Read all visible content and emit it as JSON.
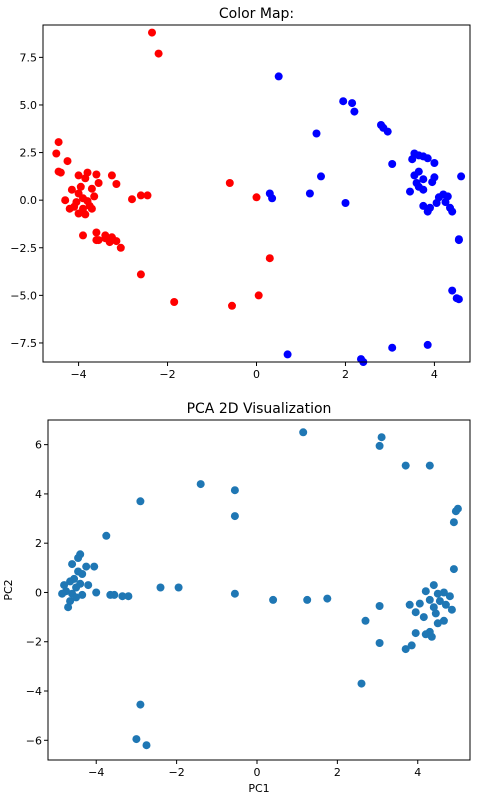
{
  "chart_data": [
    {
      "type": "scatter",
      "title": "Color Map:",
      "xlabel": "",
      "ylabel": "",
      "xlim": [
        -4.8,
        4.8
      ],
      "ylim": [
        -8.5,
        9.2
      ],
      "xticks": [
        -4,
        -2,
        0,
        2,
        4
      ],
      "yticks": [
        -7.5,
        -5.0,
        -2.5,
        0.0,
        2.5,
        5.0,
        7.5
      ],
      "grid": false,
      "series": [
        {
          "color": "#ff0000",
          "points": [
            [
              -2.35,
              8.8
            ],
            [
              -2.2,
              7.7
            ],
            [
              -4.45,
              3.05
            ],
            [
              -4.5,
              2.45
            ],
            [
              -4.25,
              2.05
            ],
            [
              -4.45,
              1.5
            ],
            [
              -4.4,
              1.45
            ],
            [
              -4.0,
              1.3
            ],
            [
              -3.85,
              1.15
            ],
            [
              -3.6,
              1.35
            ],
            [
              -3.8,
              1.45
            ],
            [
              -3.55,
              0.9
            ],
            [
              -3.95,
              0.7
            ],
            [
              -4.15,
              0.55
            ],
            [
              -3.7,
              0.6
            ],
            [
              -4.0,
              0.35
            ],
            [
              -3.9,
              0.1
            ],
            [
              -3.65,
              0.2
            ],
            [
              -4.3,
              0.0
            ],
            [
              -4.05,
              -0.1
            ],
            [
              -3.8,
              -0.05
            ],
            [
              -4.1,
              -0.35
            ],
            [
              -3.9,
              -0.45
            ],
            [
              -3.75,
              -0.3
            ],
            [
              -4.0,
              -0.7
            ],
            [
              -3.85,
              -0.75
            ],
            [
              -4.2,
              -0.45
            ],
            [
              -3.7,
              -0.45
            ],
            [
              -3.25,
              1.3
            ],
            [
              -3.15,
              0.85
            ],
            [
              -2.8,
              0.05
            ],
            [
              -2.6,
              0.25
            ],
            [
              -2.45,
              0.25
            ],
            [
              -3.9,
              -1.85
            ],
            [
              -3.6,
              -1.7
            ],
            [
              -3.55,
              -2.1
            ],
            [
              -3.4,
              -1.85
            ],
            [
              -3.4,
              -2.0
            ],
            [
              -3.6,
              -2.1
            ],
            [
              -3.3,
              -2.2
            ],
            [
              -3.25,
              -1.95
            ],
            [
              -3.15,
              -2.15
            ],
            [
              -3.05,
              -2.5
            ],
            [
              -2.6,
              -3.9
            ],
            [
              -1.85,
              -5.35
            ],
            [
              -0.6,
              0.9
            ],
            [
              -0.55,
              -5.55
            ],
            [
              0.0,
              0.15
            ],
            [
              0.05,
              -5.0
            ],
            [
              0.3,
              -3.05
            ]
          ]
        },
        {
          "color": "#0000ff",
          "points": [
            [
              0.5,
              6.5
            ],
            [
              1.95,
              5.2
            ],
            [
              2.15,
              5.1
            ],
            [
              2.2,
              4.65
            ],
            [
              2.8,
              3.95
            ],
            [
              2.85,
              3.8
            ],
            [
              2.95,
              3.6
            ],
            [
              1.35,
              3.5
            ],
            [
              3.55,
              2.45
            ],
            [
              3.65,
              2.35
            ],
            [
              3.5,
              2.15
            ],
            [
              3.75,
              2.3
            ],
            [
              3.85,
              2.2
            ],
            [
              3.05,
              1.9
            ],
            [
              4.0,
              1.95
            ],
            [
              3.65,
              1.5
            ],
            [
              3.55,
              1.3
            ],
            [
              3.75,
              1.1
            ],
            [
              3.6,
              0.9
            ],
            [
              3.95,
              0.95
            ],
            [
              4.0,
              1.2
            ],
            [
              3.65,
              0.7
            ],
            [
              3.75,
              0.55
            ],
            [
              4.6,
              1.25
            ],
            [
              1.45,
              1.25
            ],
            [
              3.45,
              0.45
            ],
            [
              0.3,
              0.35
            ],
            [
              0.35,
              0.1
            ],
            [
              1.2,
              0.35
            ],
            [
              4.1,
              0.15
            ],
            [
              4.2,
              0.3
            ],
            [
              4.3,
              0.2
            ],
            [
              4.25,
              -0.1
            ],
            [
              4.35,
              -0.4
            ],
            [
              4.4,
              -0.6
            ],
            [
              3.75,
              -0.3
            ],
            [
              3.9,
              -0.4
            ],
            [
              4.05,
              -0.15
            ],
            [
              3.85,
              -0.6
            ],
            [
              2.0,
              -0.15
            ],
            [
              4.55,
              -2.05
            ],
            [
              4.55,
              -2.1
            ],
            [
              4.4,
              -4.75
            ],
            [
              4.5,
              -5.15
            ],
            [
              4.55,
              -5.2
            ],
            [
              0.7,
              -8.1
            ],
            [
              2.35,
              -8.35
            ],
            [
              2.4,
              -8.5
            ],
            [
              3.05,
              -7.75
            ],
            [
              3.85,
              -7.6
            ]
          ]
        }
      ]
    },
    {
      "type": "scatter",
      "title": "PCA 2D Visualization",
      "xlabel": "PC1",
      "ylabel": "PC2",
      "xlim": [
        -5.2,
        5.3
      ],
      "ylim": [
        -6.8,
        7.0
      ],
      "xticks": [
        -4,
        -2,
        0,
        2,
        4
      ],
      "yticks": [
        -6,
        -4,
        -2,
        0,
        2,
        4,
        6
      ],
      "grid": false,
      "series": [
        {
          "color": "#1f77b4",
          "points": [
            [
              1.15,
              6.5
            ],
            [
              3.1,
              6.3
            ],
            [
              3.05,
              5.95
            ],
            [
              3.7,
              5.15
            ],
            [
              4.3,
              5.15
            ],
            [
              -1.4,
              4.4
            ],
            [
              -0.55,
              4.15
            ],
            [
              -2.9,
              3.7
            ],
            [
              -0.55,
              3.1
            ],
            [
              5.0,
              3.4
            ],
            [
              4.95,
              3.3
            ],
            [
              4.9,
              2.85
            ],
            [
              -3.75,
              2.3
            ],
            [
              4.9,
              0.95
            ],
            [
              -4.4,
              1.55
            ],
            [
              -4.45,
              1.4
            ],
            [
              -4.6,
              1.15
            ],
            [
              -4.25,
              1.05
            ],
            [
              -4.05,
              1.05
            ],
            [
              -4.45,
              0.85
            ],
            [
              -4.35,
              0.75
            ],
            [
              -4.55,
              0.55
            ],
            [
              -4.65,
              0.45
            ],
            [
              -4.8,
              0.3
            ],
            [
              -4.4,
              0.35
            ],
            [
              -4.2,
              0.3
            ],
            [
              -4.5,
              0.2
            ],
            [
              -4.75,
              0.05
            ],
            [
              -4.6,
              -0.05
            ],
            [
              -4.85,
              -0.05
            ],
            [
              -4.5,
              -0.2
            ],
            [
              -4.65,
              -0.35
            ],
            [
              -4.35,
              -0.1
            ],
            [
              -4.7,
              -0.6
            ],
            [
              -4.0,
              0.0
            ],
            [
              -3.65,
              -0.1
            ],
            [
              -3.55,
              -0.1
            ],
            [
              -3.35,
              -0.15
            ],
            [
              -3.2,
              -0.15
            ],
            [
              -2.4,
              0.2
            ],
            [
              -1.95,
              0.2
            ],
            [
              -0.55,
              -0.05
            ],
            [
              0.4,
              -0.3
            ],
            [
              1.25,
              -0.3
            ],
            [
              1.75,
              -0.25
            ],
            [
              4.4,
              0.3
            ],
            [
              4.2,
              0.05
            ],
            [
              4.65,
              0.0
            ],
            [
              4.5,
              -0.05
            ],
            [
              4.8,
              -0.15
            ],
            [
              4.3,
              -0.3
            ],
            [
              4.55,
              -0.35
            ],
            [
              4.7,
              -0.5
            ],
            [
              4.85,
              -0.7
            ],
            [
              4.4,
              -0.6
            ],
            [
              4.05,
              -0.45
            ],
            [
              3.8,
              -0.5
            ],
            [
              3.95,
              -0.8
            ],
            [
              4.15,
              -1.0
            ],
            [
              4.45,
              -0.85
            ],
            [
              4.65,
              -1.15
            ],
            [
              4.5,
              -1.25
            ],
            [
              4.3,
              -1.6
            ],
            [
              4.2,
              -1.7
            ],
            [
              4.35,
              -1.8
            ],
            [
              3.95,
              -1.65
            ],
            [
              3.05,
              -0.55
            ],
            [
              2.7,
              -1.15
            ],
            [
              3.05,
              -2.05
            ],
            [
              3.85,
              -2.15
            ],
            [
              3.7,
              -2.3
            ],
            [
              2.6,
              -3.7
            ],
            [
              -2.9,
              -4.55
            ],
            [
              -3.0,
              -5.95
            ],
            [
              -2.75,
              -6.2
            ]
          ]
        }
      ]
    }
  ]
}
